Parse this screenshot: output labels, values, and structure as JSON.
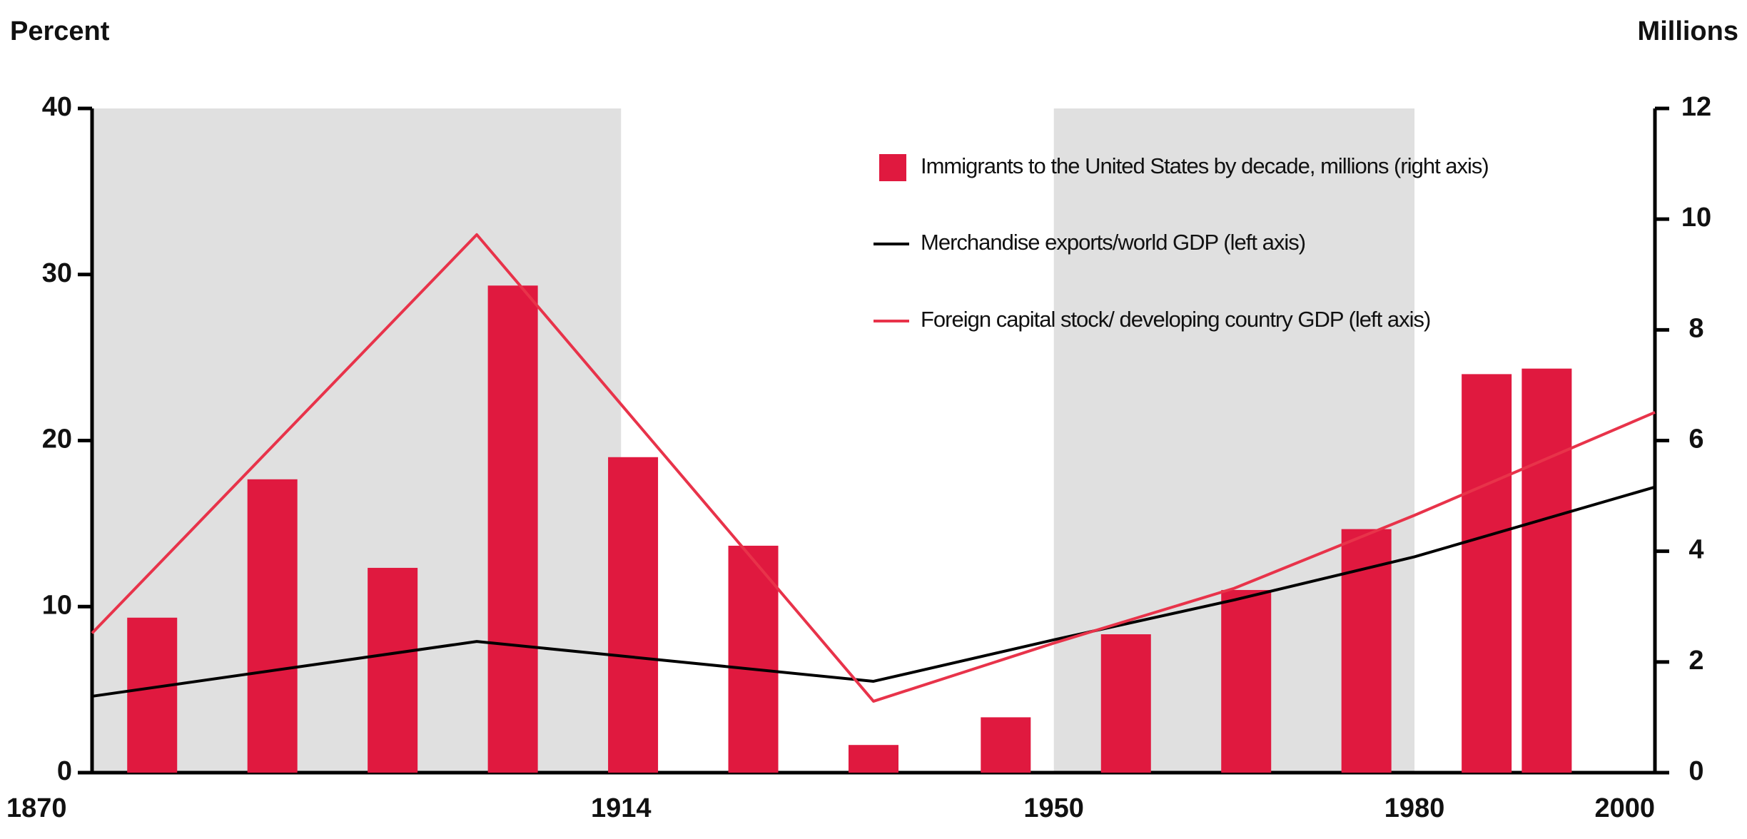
{
  "chart_data": {
    "type": "bar-line",
    "y_label": "Percent",
    "y2_label": "Millions",
    "xlim": [
      1870,
      2000
    ],
    "xticks": [
      1870,
      1914,
      1950,
      1980,
      2000
    ],
    "ylim": [
      0,
      40
    ],
    "yticks": [
      0,
      10,
      20,
      30,
      40
    ],
    "y2lim": [
      0,
      12
    ],
    "y2ticks": [
      0,
      2,
      4,
      6,
      8,
      10,
      12
    ],
    "shaded_periods": [
      [
        1870,
        1914
      ],
      [
        1950,
        1980
      ]
    ],
    "shade_color": "#e0e0e0",
    "legend": "upper right",
    "series": [
      {
        "name": "Immigrants to the United States by decade, millions (right axis)",
        "type": "bar",
        "axis": "y2",
        "color": "#e0193f",
        "x": [
          1875,
          1885,
          1895,
          1905,
          1915,
          1925,
          1935,
          1946,
          1956,
          1966,
          1976,
          1986,
          1991
        ],
        "values": [
          2.8,
          5.3,
          3.7,
          8.8,
          5.7,
          4.1,
          0.5,
          1.0,
          2.5,
          3.3,
          4.4,
          7.2,
          7.3
        ]
      },
      {
        "name": "Merchandise exports/world GDP (left axis)",
        "type": "line",
        "color": "#000000",
        "x": [
          1870,
          1902,
          1935,
          1950,
          1965,
          1980,
          2000
        ],
        "values": [
          4.6,
          7.9,
          5.5,
          8.0,
          10.4,
          13.0,
          17.2
        ]
      },
      {
        "name": "Foreign capital stock/ developing country GDP  (left axis)",
        "type": "line",
        "color": "#e8334a",
        "x": [
          1870,
          1902,
          1935,
          1950,
          1965,
          1980,
          2000
        ],
        "values": [
          8.4,
          32.4,
          4.3,
          7.8,
          11.1,
          15.5,
          21.7
        ]
      }
    ]
  }
}
